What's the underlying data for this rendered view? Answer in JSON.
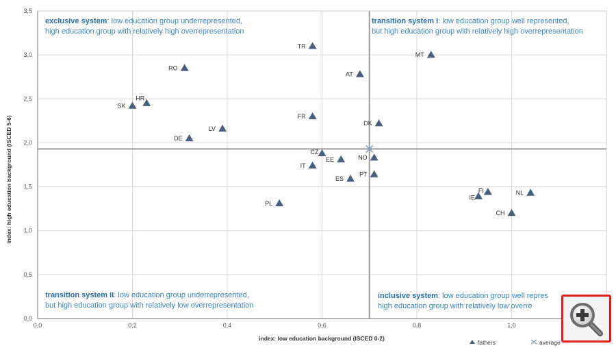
{
  "chart_data": {
    "type": "scatter",
    "xlabel": "index: low education background (ISCED 0-2)",
    "ylabel": "index: high education background (ISCED 5-6)",
    "xlim": [
      0,
      1.2
    ],
    "ylim": [
      0,
      3.5
    ],
    "x_ticks": [
      "0,0",
      "0,2",
      "0,4",
      "0,6",
      "0,8",
      "1,0"
    ],
    "x_tick_values": [
      0,
      0.2,
      0.4,
      0.6,
      0.8,
      1.0
    ],
    "y_ticks": [
      "0,0",
      "0,5",
      "1,0",
      "1,5",
      "2,0",
      "2,5",
      "3,0",
      "3,5"
    ],
    "y_tick_values": [
      0,
      0.5,
      1.0,
      1.5,
      2.0,
      2.5,
      3.0,
      3.5
    ],
    "grid": true,
    "legend_position": "bottom-right",
    "series": [
      {
        "name": "fathers",
        "marker": "triangle",
        "color": "#4a5f7e",
        "points": [
          {
            "label": "TR",
            "x": 0.58,
            "y": 3.1
          },
          {
            "label": "MT",
            "x": 0.83,
            "y": 3.0
          },
          {
            "label": "RO",
            "x": 0.31,
            "y": 2.85
          },
          {
            "label": "AT",
            "x": 0.68,
            "y": 2.78
          },
          {
            "label": "HR",
            "x": 0.23,
            "y": 2.45
          },
          {
            "label": "SK",
            "x": 0.2,
            "y": 2.42
          },
          {
            "label": "FR",
            "x": 0.58,
            "y": 2.3
          },
          {
            "label": "DK",
            "x": 0.72,
            "y": 2.22
          },
          {
            "label": "LV",
            "x": 0.39,
            "y": 2.16
          },
          {
            "label": "DE",
            "x": 0.32,
            "y": 2.05
          },
          {
            "label": "CZ",
            "x": 0.6,
            "y": 1.88
          },
          {
            "label": "EE",
            "x": 0.64,
            "y": 1.81
          },
          {
            "label": "NO",
            "x": 0.71,
            "y": 1.83
          },
          {
            "label": "IT",
            "x": 0.58,
            "y": 1.74
          },
          {
            "label": "PT",
            "x": 0.71,
            "y": 1.64
          },
          {
            "label": "ES",
            "x": 0.66,
            "y": 1.59
          },
          {
            "label": "FI",
            "x": 0.95,
            "y": 1.44
          },
          {
            "label": "IE",
            "x": 0.93,
            "y": 1.39
          },
          {
            "label": "NL",
            "x": 1.04,
            "y": 1.43
          },
          {
            "label": "PL",
            "x": 0.51,
            "y": 1.31
          },
          {
            "label": "CH",
            "x": 1.0,
            "y": 1.2
          }
        ]
      },
      {
        "name": "average",
        "marker": "x",
        "color": "#8aa0bf",
        "points": [
          {
            "label": "",
            "x": 0.7,
            "y": 1.93
          }
        ]
      }
    ],
    "reference_lines": {
      "x": 0.7,
      "y": 1.93
    },
    "annotations": [
      {
        "key": "exclusive",
        "bold": "exclusive system",
        "line1": ": low education group underrepresented,",
        "line2": "high education group with relatively high overrepresentation"
      },
      {
        "key": "transition1",
        "bold": "transition system I",
        "line1": ": low education group well represented,",
        "line2": "but high education group with relatively high overrepresentation"
      },
      {
        "key": "transition2",
        "bold": "transition system II",
        "line1": ": low education group underrepresented,",
        "line2": "but high education group with relatively low overrepresentation"
      },
      {
        "key": "inclusive",
        "bold": "inclusive system",
        "line1": ": low education group well repres",
        "line2": "high education group with relatively low overre"
      }
    ]
  },
  "ui": {
    "zoom_icon": "magnifier-plus-icon",
    "zoom_border_color": "#e0201c"
  }
}
